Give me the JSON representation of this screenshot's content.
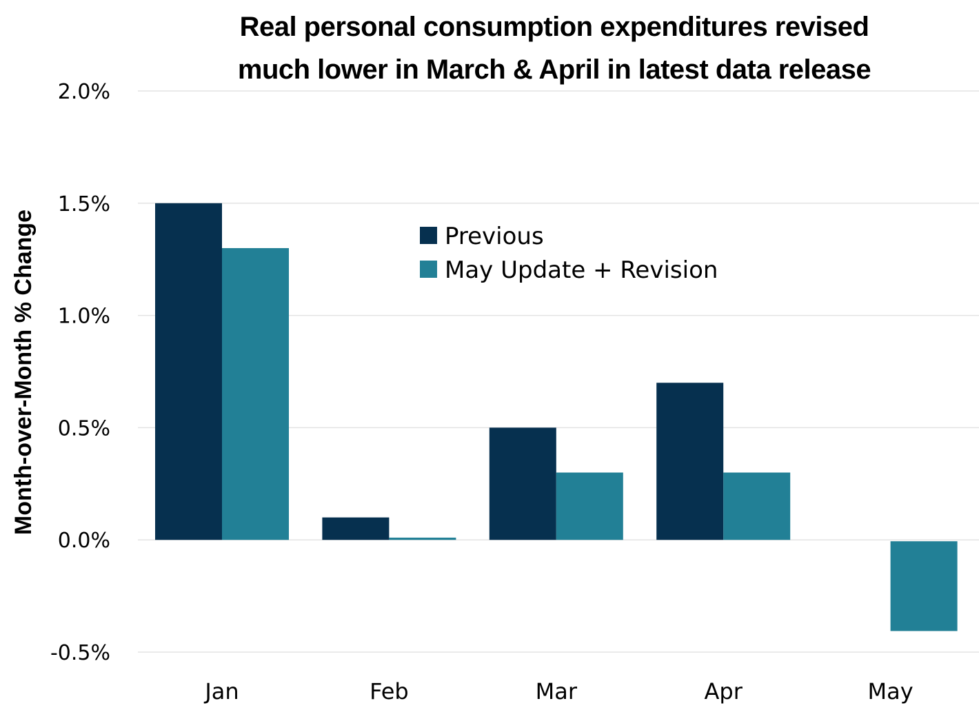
{
  "chart_data": {
    "type": "bar",
    "title": [
      "Real personal consumption expenditures revised",
      "much lower in March & April in latest data release"
    ],
    "xlabel": "",
    "ylabel": "Month-over-Month % Change",
    "categories": [
      "Jan",
      "Feb",
      "Mar",
      "Apr",
      "May"
    ],
    "series": [
      {
        "name": "Previous",
        "color": "#06304f",
        "values": [
          1.5,
          0.1,
          0.5,
          0.7,
          null
        ]
      },
      {
        "name": "May Update + Revision",
        "color": "#228096",
        "values": [
          1.3,
          0.01,
          0.3,
          0.3,
          -0.4
        ]
      }
    ],
    "ylim": [
      -0.5,
      2.0
    ],
    "yticks": [
      2.0,
      1.5,
      1.0,
      0.5,
      0.0,
      -0.5
    ],
    "ytick_labels": [
      "2.0%",
      "1.5%",
      "1.0%",
      "0.5%",
      "0.0%",
      "-0.5%"
    ],
    "grid": true,
    "grid_color": "#e3e3e3",
    "legend_position": "top-center"
  }
}
